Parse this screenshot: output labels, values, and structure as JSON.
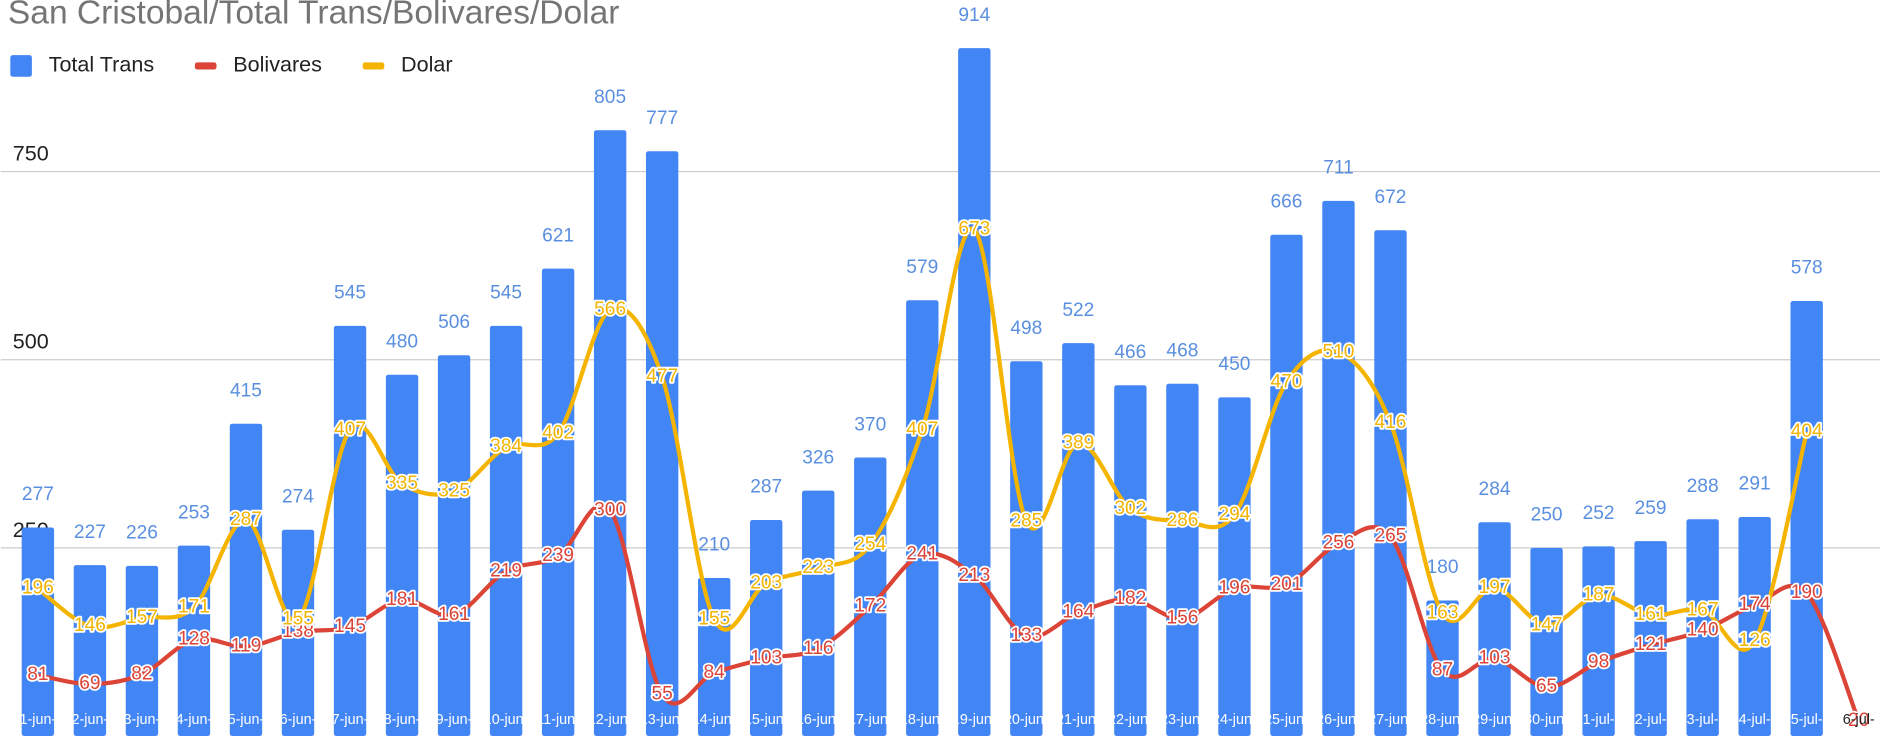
{
  "chart_data": {
    "type": "bar-line",
    "title": "San Cristobal/Total Trans/Bolivares/Dolar",
    "categories": [
      "1-jun-",
      "2-jun-",
      "3-jun-",
      "4-jun-",
      "5-jun-",
      "6-jun-",
      "7-jun-",
      "8-jun-",
      "9-jun-",
      "10-jun-",
      "11-jun-",
      "12-jun-",
      "13-jun-",
      "14-jun-",
      "15-jun-",
      "16-jun-",
      "17-jun-",
      "18-jun-",
      "19-jun-",
      "20-jun-",
      "21-jun-",
      "22-jun-",
      "23-jun-",
      "24-jun-",
      "25-jun-",
      "26-jun-",
      "27-jun-",
      "28-jun-",
      "29-jun-",
      "30-jun-",
      "1-jul-",
      "2-jul-",
      "3-jul-",
      "4-jul-",
      "5-jul-",
      "6-jul-"
    ],
    "series": [
      {
        "name": "Total Trans",
        "type": "bar",
        "color": "#4285f4",
        "values": [
          277,
          227,
          226,
          253,
          415,
          274,
          545,
          480,
          506,
          545,
          621,
          805,
          777,
          210,
          287,
          326,
          370,
          579,
          914,
          498,
          522,
          466,
          468,
          450,
          666,
          711,
          672,
          180,
          284,
          250,
          252,
          259,
          288,
          291,
          578,
          null
        ]
      },
      {
        "name": "Bolivares",
        "type": "line",
        "color": "#db4437",
        "values": [
          81,
          69,
          82,
          128,
          119,
          138,
          145,
          181,
          161,
          219,
          239,
          300,
          55,
          84,
          103,
          116,
          172,
          241,
          213,
          133,
          164,
          182,
          156,
          196,
          201,
          256,
          265,
          87,
          103,
          65,
          98,
          121,
          140,
          174,
          190,
          20
        ]
      },
      {
        "name": "Dolar",
        "type": "line",
        "color": "#f4b400",
        "values": [
          196,
          146,
          157,
          171,
          287,
          155,
          407,
          335,
          325,
          384,
          402,
          566,
          477,
          155,
          203,
          223,
          254,
          407,
          673,
          285,
          389,
          302,
          286,
          294,
          470,
          510,
          416,
          163,
          197,
          147,
          187,
          161,
          167,
          126,
          404,
          null
        ]
      }
    ],
    "ylim": [
      0,
      978
    ],
    "yticks": [
      250,
      500,
      750
    ],
    "grid": true
  }
}
